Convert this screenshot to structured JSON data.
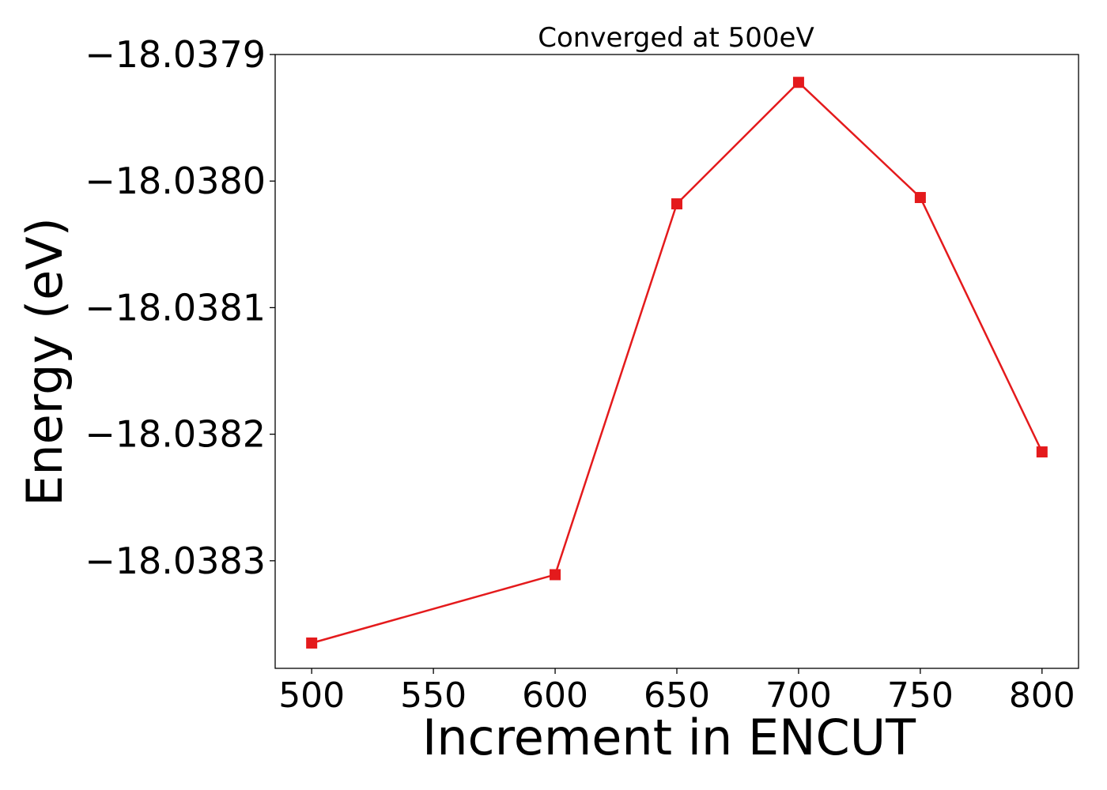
{
  "chart_data": {
    "type": "line",
    "title": "Converged at 500eV",
    "xlabel": "Increment in ENCUT",
    "ylabel": "Energy (eV)",
    "x": [
      500,
      600,
      650,
      700,
      750,
      800
    ],
    "series": [
      {
        "values": [
          -18.038365,
          -18.038311,
          -18.038018,
          -18.037922,
          -18.038013,
          -18.038214
        ],
        "color": "#e41a1c",
        "marker": "square"
      }
    ],
    "xlim": [
      485,
      815
    ],
    "ylim": [
      -18.038385,
      -18.0379
    ],
    "xticks": [
      500,
      550,
      600,
      650,
      700,
      750,
      800
    ],
    "xtick_labels": [
      "500",
      "550",
      "600",
      "650",
      "700",
      "750",
      "800"
    ],
    "yticks": [
      -18.0383,
      -18.0382,
      -18.0381,
      -18.038,
      -18.0379
    ],
    "ytick_labels": [
      "−18.0383",
      "−18.0382",
      "−18.0381",
      "−18.0380",
      "−18.0379"
    ],
    "grid": false,
    "legend": "none"
  }
}
